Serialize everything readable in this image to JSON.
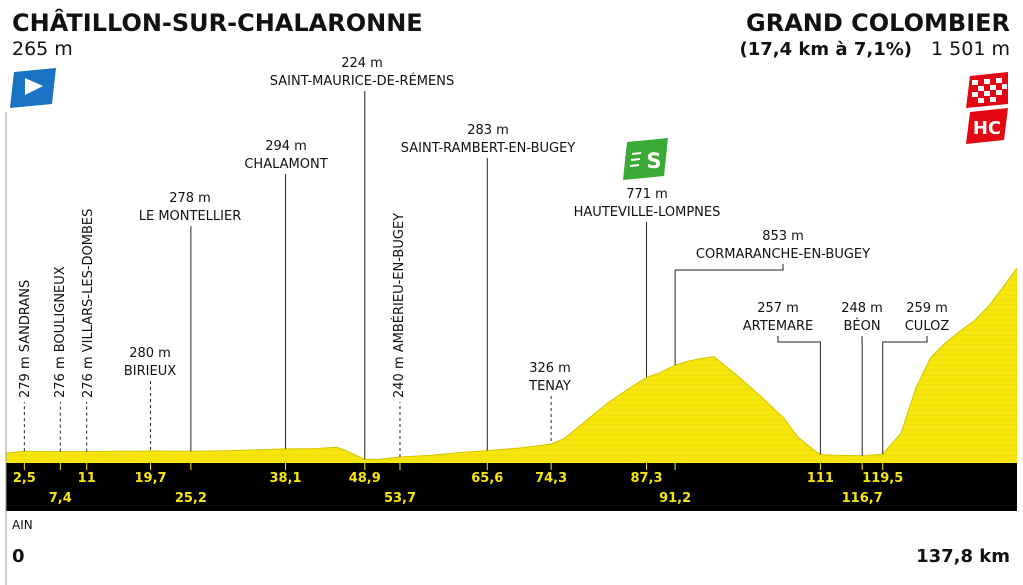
{
  "header": {
    "start_name": "CHÂTILLON-SUR-CHALARONNE",
    "start_alt": "265 m",
    "finish_name": "GRAND COLOMBIER",
    "finish_climb": "(17,4 km à 7,1%)",
    "finish_alt": "1 501 m",
    "finish_category": "HC",
    "sprint_letter": "S"
  },
  "footer": {
    "region": "AIN",
    "start_km": "0",
    "end_km": "137,8 km"
  },
  "colors": {
    "profile_fill": "#f6e60c",
    "band": "#000000",
    "km_text": "#f6e60c",
    "start_flag": "#1a72c4",
    "finish_flag": "#e30613",
    "sprint": "#3aa935"
  },
  "chart_data": {
    "type": "area",
    "x_unit": "km",
    "y_unit": "m",
    "xlim": [
      0,
      137.8
    ],
    "ylim": [
      200,
      1501
    ],
    "profile": [
      [
        0,
        265
      ],
      [
        2.5,
        279
      ],
      [
        5,
        276
      ],
      [
        7.4,
        276
      ],
      [
        11,
        276
      ],
      [
        15,
        278
      ],
      [
        19.7,
        280
      ],
      [
        25.2,
        278
      ],
      [
        30,
        282
      ],
      [
        38.1,
        294
      ],
      [
        42,
        296
      ],
      [
        45,
        305
      ],
      [
        46,
        290
      ],
      [
        48.9,
        224
      ],
      [
        51,
        226
      ],
      [
        53.7,
        240
      ],
      [
        58,
        252
      ],
      [
        62,
        270
      ],
      [
        65.6,
        283
      ],
      [
        70,
        300
      ],
      [
        74.3,
        326
      ],
      [
        76,
        360
      ],
      [
        78,
        440
      ],
      [
        80,
        520
      ],
      [
        82,
        600
      ],
      [
        85,
        700
      ],
      [
        87.3,
        771
      ],
      [
        89,
        800
      ],
      [
        91.2,
        853
      ],
      [
        93,
        880
      ],
      [
        95,
        900
      ],
      [
        96.5,
        910
      ],
      [
        98,
        850
      ],
      [
        100,
        770
      ],
      [
        103,
        640
      ],
      [
        106,
        500
      ],
      [
        108,
        370
      ],
      [
        110,
        290
      ],
      [
        111,
        257
      ],
      [
        113,
        252
      ],
      [
        116.7,
        248
      ],
      [
        119.5,
        259
      ],
      [
        122,
        400
      ],
      [
        124,
        700
      ],
      [
        126,
        900
      ],
      [
        128,
        1000
      ],
      [
        130,
        1080
      ],
      [
        132,
        1150
      ],
      [
        134,
        1250
      ],
      [
        136,
        1380
      ],
      [
        137.8,
        1501
      ]
    ],
    "points": [
      {
        "km": 2.5,
        "km_label": "2,5",
        "name": "SANDRANS",
        "alt": "279 m",
        "style": "v"
      },
      {
        "km": 7.4,
        "km_label": "7,4",
        "name": "BOULIGNEUX",
        "alt": "276 m",
        "style": "v"
      },
      {
        "km": 11,
        "km_label": "11",
        "name": "VILLARS-LES-DOMBES",
        "alt": "276 m",
        "style": "v"
      },
      {
        "km": 19.7,
        "km_label": "19,7",
        "name": "BIRIEUX",
        "alt": "280 m",
        "style": "h"
      },
      {
        "km": 25.2,
        "km_label": "25,2",
        "name": "LE MONTELLIER",
        "alt": "278 m",
        "style": "h"
      },
      {
        "km": 38.1,
        "km_label": "38,1",
        "name": "CHALAMONT",
        "alt": "294 m",
        "style": "h"
      },
      {
        "km": 48.9,
        "km_label": "48,9",
        "name": "SAINT-MAURICE-DE-RÉMENS",
        "alt": "224 m",
        "style": "h"
      },
      {
        "km": 53.7,
        "km_label": "53,7",
        "name": "AMBÉRIEU-EN-BUGEY",
        "alt": "240 m",
        "style": "v"
      },
      {
        "km": 65.6,
        "km_label": "65,6",
        "name": "SAINT-RAMBERT-EN-BUGEY",
        "alt": "283 m",
        "style": "h"
      },
      {
        "km": 74.3,
        "km_label": "74,3",
        "name": "TENAY",
        "alt": "326 m",
        "style": "h"
      },
      {
        "km": 87.3,
        "km_label": "87,3",
        "name": "HAUTEVILLE-LOMPNES",
        "alt": "771 m",
        "style": "h"
      },
      {
        "km": 91.2,
        "km_label": "91,2",
        "name": "CORMARANCHE-EN-BUGEY",
        "alt": "853 m",
        "style": "h"
      },
      {
        "km": 111,
        "km_label": "111",
        "name": "ARTEMARE",
        "alt": "257 m",
        "style": "h"
      },
      {
        "km": 116.7,
        "km_label": "116,7",
        "name": "BÉON",
        "alt": "248 m",
        "style": "h"
      },
      {
        "km": 119.5,
        "km_label": "119,5",
        "name": "CULOZ",
        "alt": "259 m",
        "style": "h"
      }
    ],
    "grid": false
  }
}
